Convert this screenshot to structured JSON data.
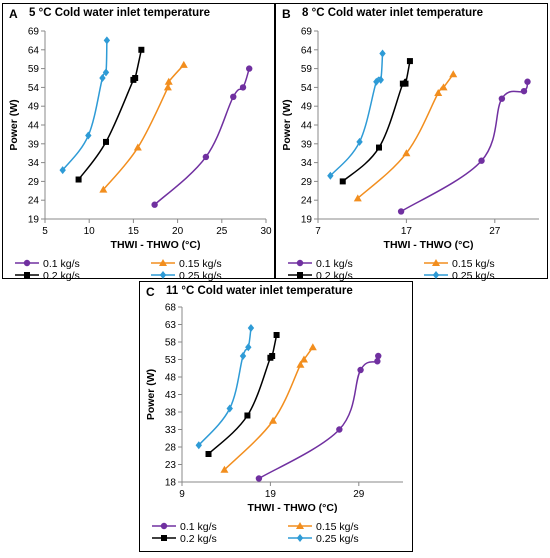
{
  "colors": {
    "s01": "#7030a0",
    "s015": "#f28e1e",
    "s02": "#000000",
    "s025": "#2e9bd6"
  },
  "chart_data": [
    {
      "id": "A",
      "letter": "A",
      "type": "line",
      "title": "5 °C Cold water inlet temperature",
      "xlabel": "THWI - THWO (°C)",
      "ylabel": "Power (W)",
      "xlim": [
        5,
        30
      ],
      "ylim": [
        19,
        69
      ],
      "xticks": [
        "5",
        "10",
        "15",
        "20",
        "25",
        "30"
      ],
      "yticks": [
        "19",
        "24",
        "29",
        "34",
        "39",
        "44",
        "49",
        "54",
        "59",
        "64",
        "69"
      ],
      "series": [
        {
          "name": "0.1 kg/s",
          "marker": "circle",
          "color_key": "s01",
          "x": [
            17.4,
            23.2,
            26.3,
            27.4,
            28.1
          ],
          "y": [
            22.8,
            35.5,
            51.5,
            54.0,
            59.0
          ]
        },
        {
          "name": "0.15 kg/s",
          "marker": "triangle",
          "color_key": "s015",
          "x": [
            11.6,
            15.5,
            18.9,
            19.0,
            20.7
          ],
          "y": [
            26.8,
            38.0,
            54.0,
            55.5,
            60.0
          ]
        },
        {
          "name": "0.2 kg/s",
          "marker": "square",
          "color_key": "s02",
          "x": [
            8.8,
            11.9,
            15.0,
            15.2,
            15.9
          ],
          "y": [
            29.5,
            39.5,
            56.0,
            56.5,
            64.0
          ]
        },
        {
          "name": "0.25 kg/s",
          "marker": "diamond",
          "color_key": "s025",
          "x": [
            7.0,
            9.9,
            11.5,
            11.9,
            12.0
          ],
          "y": [
            32.0,
            41.2,
            56.5,
            58.0,
            66.5
          ]
        }
      ]
    },
    {
      "id": "B",
      "letter": "B",
      "type": "line",
      "title": "8 °C Cold water inlet temperature",
      "xlabel": "THWI - THWO (°C)",
      "ylabel": "Power (W)",
      "xlim": [
        7,
        32
      ],
      "ylim": [
        19,
        69
      ],
      "xticks": [
        "7",
        "17",
        "27"
      ],
      "yticks": [
        "19",
        "24",
        "29",
        "34",
        "39",
        "44",
        "49",
        "54",
        "59",
        "64",
        "69"
      ],
      "series": [
        {
          "name": "0.1 kg/s",
          "marker": "circle",
          "color_key": "s01",
          "x": [
            16.4,
            25.5,
            27.8,
            30.3,
            30.7
          ],
          "y": [
            21.0,
            34.5,
            51.0,
            53.0,
            55.5
          ]
        },
        {
          "name": "0.15 kg/s",
          "marker": "triangle",
          "color_key": "s015",
          "x": [
            11.5,
            17.0,
            20.6,
            21.2,
            22.3
          ],
          "y": [
            24.5,
            36.5,
            52.5,
            54.0,
            57.5
          ]
        },
        {
          "name": "0.2 kg/s",
          "marker": "square",
          "color_key": "s02",
          "x": [
            9.8,
            13.9,
            16.6,
            16.9,
            17.4
          ],
          "y": [
            29.0,
            38.0,
            55.0,
            55.0,
            61.0
          ]
        },
        {
          "name": "0.25 kg/s",
          "marker": "diamond",
          "color_key": "s025",
          "x": [
            8.4,
            11.7,
            13.6,
            14.1,
            14.3
          ],
          "y": [
            30.5,
            39.5,
            55.5,
            56.0,
            63.0
          ]
        }
      ]
    },
    {
      "id": "C",
      "letter": "C",
      "type": "line",
      "title": "11 °C Cold water inlet temperature",
      "xlabel": "THWI - THWO (°C)",
      "ylabel": "Power (W)",
      "xlim": [
        9,
        34
      ],
      "ylim": [
        18,
        68
      ],
      "xticks": [
        "9",
        "19",
        "29"
      ],
      "yticks": [
        "18",
        "23",
        "28",
        "33",
        "38",
        "43",
        "48",
        "53",
        "58",
        "63",
        "68"
      ],
      "series": [
        {
          "name": "0.1 kg/s",
          "marker": "circle",
          "color_key": "s01",
          "x": [
            17.7,
            26.8,
            29.2,
            31.1,
            31.2
          ],
          "y": [
            19.0,
            33.0,
            50.0,
            52.5,
            54.0
          ]
        },
        {
          "name": "0.15 kg/s",
          "marker": "triangle",
          "color_key": "s015",
          "x": [
            13.8,
            19.3,
            22.4,
            22.8,
            23.8
          ],
          "y": [
            21.5,
            35.5,
            51.5,
            53.0,
            56.5
          ]
        },
        {
          "name": "0.2 kg/s",
          "marker": "square",
          "color_key": "s02",
          "x": [
            12.0,
            16.4,
            19.0,
            19.2,
            19.7
          ],
          "y": [
            26.0,
            37.0,
            53.5,
            54.0,
            60.0
          ]
        },
        {
          "name": "0.25 kg/s",
          "marker": "diamond",
          "color_key": "s025",
          "x": [
            10.9,
            14.4,
            15.9,
            16.5,
            16.8
          ],
          "y": [
            28.5,
            39.0,
            54.0,
            56.5,
            62.0
          ]
        }
      ]
    }
  ]
}
